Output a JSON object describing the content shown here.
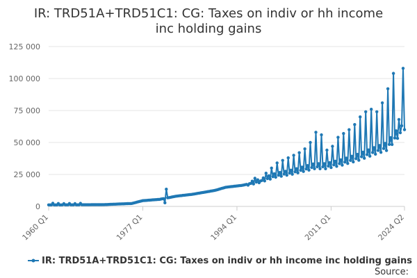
{
  "chart_data": {
    "type": "line",
    "title_line1": "IR: TRD51A+TRD51C1: CG: Taxes on indiv or hh income",
    "title_line2": "inc holding gains",
    "series": [
      {
        "name": "IR: TRD51A+TRD51C1: CG: Taxes on indiv or hh income inc holding gains",
        "color": "#1f78b4"
      }
    ],
    "y_ticks": [
      "0",
      "25 000",
      "50 000",
      "75 000",
      "100 000",
      "125 000"
    ],
    "ylim": [
      0,
      125000
    ],
    "x_ticks": [
      {
        "label": "1960 Q1",
        "t": 1960.0
      },
      {
        "label": "1977 Q1",
        "t": 1977.0
      },
      {
        "label": "1994 Q1",
        "t": 1994.0
      },
      {
        "label": "2011 Q1",
        "t": 2011.0
      },
      {
        "label": "2024 Q2",
        "t": 2024.25
      }
    ],
    "xlim": [
      1960.0,
      2024.25
    ],
    "grid": true,
    "legend_position": "bottom",
    "source_label": "Source:",
    "anchors": [
      [
        1960.0,
        1200
      ],
      [
        1965.0,
        1250
      ],
      [
        1970.0,
        1400
      ],
      [
        1975.0,
        2300
      ],
      [
        1977.0,
        4500
      ],
      [
        1980.0,
        5500
      ],
      [
        1981.25,
        6500
      ],
      [
        1983.0,
        8000
      ],
      [
        1986.0,
        9500
      ],
      [
        1990.0,
        12500
      ],
      [
        1992.0,
        15000
      ],
      [
        1995.0,
        16500
      ],
      [
        1998.0,
        19500
      ],
      [
        2001.0,
        24000
      ],
      [
        2004.0,
        26500
      ],
      [
        2008.0,
        31000
      ],
      [
        2010.0,
        31000
      ],
      [
        2013.0,
        34000
      ],
      [
        2016.0,
        38000
      ],
      [
        2019.0,
        43000
      ],
      [
        2021.0,
        46000
      ],
      [
        2023.0,
        56000
      ],
      [
        2024.25,
        60000
      ]
    ],
    "spikes": [
      [
        1960.75,
        2500
      ],
      [
        1961.75,
        2300
      ],
      [
        1962.75,
        2200
      ],
      [
        1963.75,
        2300
      ],
      [
        1964.75,
        2200
      ],
      [
        1965.75,
        2400
      ],
      [
        1981.25,
        13500
      ],
      [
        1981.0,
        2800
      ],
      [
        1997.25,
        22000
      ],
      [
        1999.25,
        26000
      ],
      [
        2000.25,
        30000
      ],
      [
        2001.25,
        34000
      ],
      [
        2002.25,
        36000
      ],
      [
        2003.25,
        38000
      ],
      [
        2004.25,
        40000
      ],
      [
        2005.25,
        42000
      ],
      [
        2006.25,
        45000
      ],
      [
        2007.25,
        50000
      ],
      [
        2008.25,
        58000
      ],
      [
        2009.25,
        56000
      ],
      [
        2010.25,
        44000
      ],
      [
        2011.25,
        47000
      ],
      [
        2012.25,
        54000
      ],
      [
        2013.25,
        57000
      ],
      [
        2014.25,
        60000
      ],
      [
        2015.25,
        64000
      ],
      [
        2016.25,
        70000
      ],
      [
        2017.25,
        74000
      ],
      [
        2018.25,
        76000
      ],
      [
        2019.25,
        74000
      ],
      [
        2020.25,
        81000
      ],
      [
        2021.25,
        92000
      ],
      [
        2022.25,
        104000
      ],
      [
        2023.25,
        68000
      ],
      [
        2024.0,
        108000
      ]
    ]
  }
}
